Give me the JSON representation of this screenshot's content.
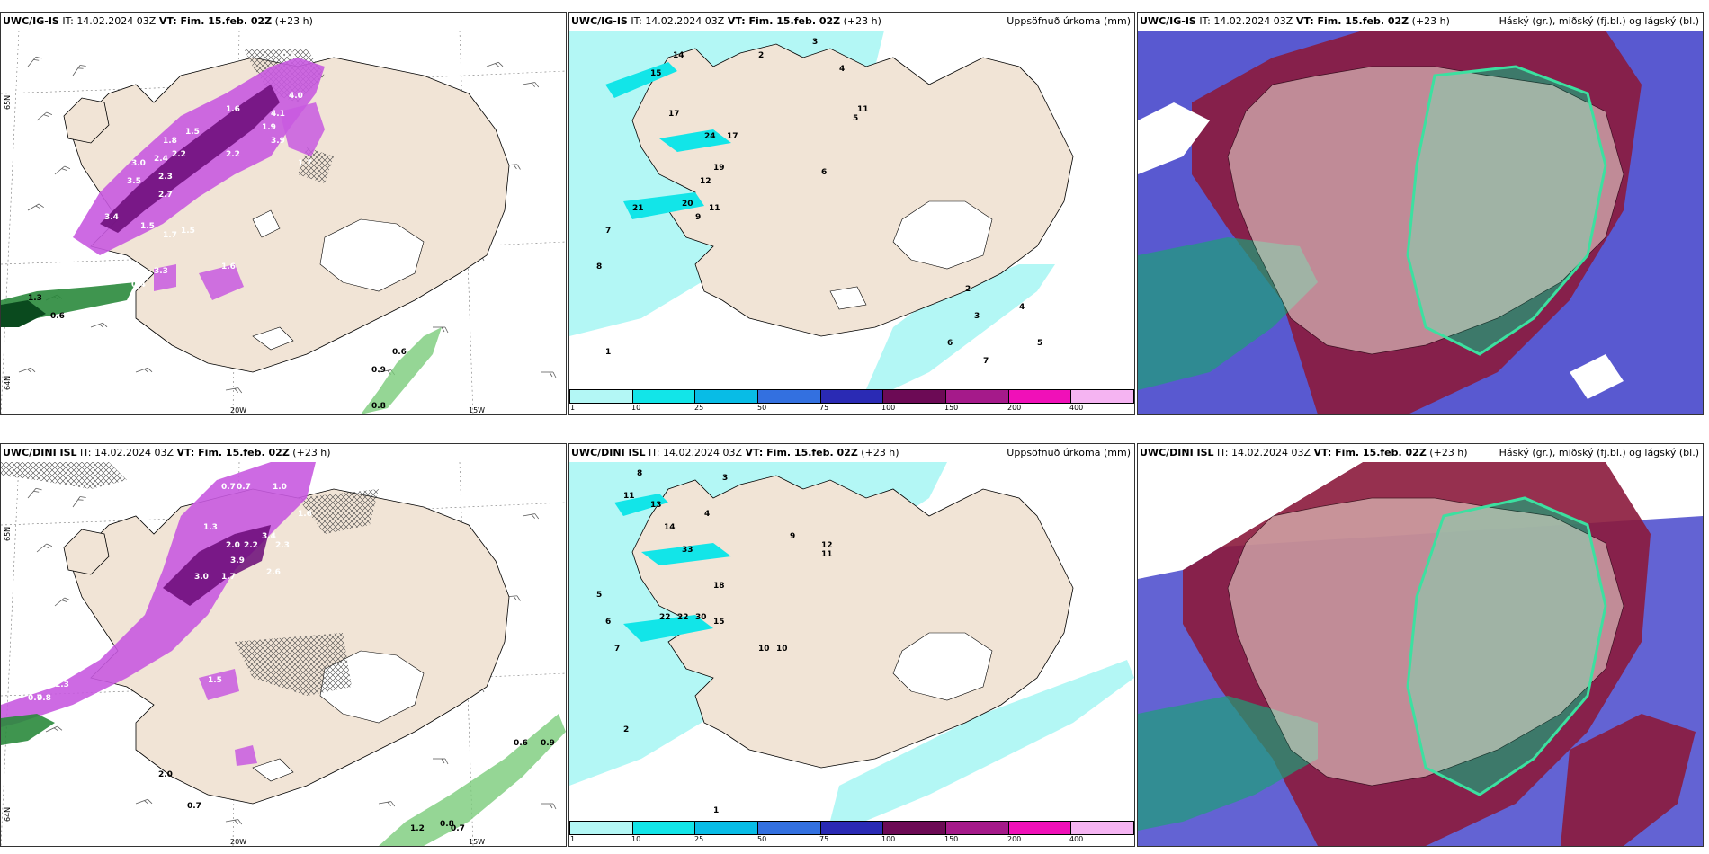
{
  "panels": {
    "p1": {
      "model": "UWC/IG-IS",
      "it_text": " IT: 14.02.2024 03Z ",
      "vt_label": "VT: Fim. 15.feb. 02Z",
      "lead": " (+23 h)",
      "right_label": "",
      "axis_labels": {
        "lat1": "65N",
        "lat2": "64N",
        "lon1": "20W",
        "lon2": "15W"
      },
      "values": [
        "0.3",
        "1.6",
        "1.5",
        "1.8",
        "3.0",
        "2.4",
        "2.2",
        "3.5",
        "2.7",
        "2.3",
        "3.4",
        "1.5",
        "1.7",
        "3.3",
        "0.4",
        "1.3",
        "1.6",
        "1.5",
        "0.6",
        "0.9",
        "0.6",
        "0.8",
        "4.0",
        "4.1",
        "1.9",
        "3.9",
        "1.7",
        "2.2"
      ]
    },
    "p2": {
      "model": "UWC/IG-IS",
      "it_text": " IT: 14.02.2024 03Z ",
      "vt_label": "VT: Fim. 15.feb. 02Z",
      "lead": " (+23 h)",
      "right_label": "Uppsöfnuð úrkoma (mm)",
      "colorbar_labels": [
        "1",
        "10",
        "25",
        "50",
        "75",
        "100",
        "150",
        "200",
        "400"
      ],
      "values": [
        "15",
        "14",
        "17",
        "24",
        "17",
        "19",
        "12",
        "21",
        "20",
        "11",
        "9",
        "2",
        "3",
        "4",
        "5",
        "6",
        "7",
        "8",
        "1",
        "11",
        "2",
        "3",
        "4",
        "5",
        "6",
        "7"
      ]
    },
    "p3": {
      "model": "UWC/IG-IS",
      "it_text": " IT: 14.02.2024 03Z ",
      "vt_label": "VT: Fim. 15.feb. 02Z",
      "lead": " (+23 h)",
      "right_label": "Háský (gr.), miðský (fj.bl.) og lágský (bl.)"
    },
    "p4": {
      "model": "UWC/DINI ISL",
      "it_text": " IT: 14.02.2024 03Z ",
      "vt_label": "VT: Fim. 15.feb. 02Z",
      "lead": " (+23 h)",
      "right_label": "",
      "axis_labels": {
        "lat1": "65N",
        "lat2": "64N",
        "lon1": "20W",
        "lon2": "15W"
      },
      "values": [
        "0.7",
        "0.7",
        "1.0",
        "1.3",
        "2.0",
        "3.4",
        "1.6",
        "2.2",
        "2.3",
        "3.0",
        "1.7",
        "3.9",
        "2.6",
        "0.7",
        "1.3",
        "0.8",
        "0.7",
        "1.2",
        "0.8",
        "0.7",
        "0.9",
        "1.5",
        "2.0",
        "0.6"
      ]
    },
    "p5": {
      "model": "UWC/DINI ISL",
      "it_text": " IT: 14.02.2024 03Z ",
      "vt_label": "VT: Fim. 15.feb. 02Z",
      "lead": " (+23 h)",
      "right_label": "Uppsöfnuð úrkoma (mm)",
      "colorbar_labels": [
        "1",
        "10",
        "25",
        "50",
        "75",
        "100",
        "150",
        "200",
        "400"
      ],
      "values": [
        "8",
        "11",
        "13",
        "14",
        "33",
        "18",
        "22",
        "22",
        "30",
        "10",
        "10",
        "12",
        "3",
        "4",
        "5",
        "6",
        "7",
        "2",
        "1",
        "9",
        "15",
        "11"
      ]
    },
    "p6": {
      "model": "UWC/DINI ISL",
      "it_text": " IT: 14.02.2024 03Z ",
      "vt_label": "VT: Fim. 15.feb. 02Z",
      "lead": " (+23 h)",
      "right_label": "Háský (gr.), miðský (fj.bl.) og lágský (bl.)"
    }
  },
  "colors": {
    "land": "#f1e4d6",
    "coast": "#000000",
    "precip_scale": [
      "#b3f7f5",
      "#12e5e8",
      "#08bce6",
      "#3370e0",
      "#2a2ab4",
      "#6c0a55",
      "#a51a8a",
      "#f010b8",
      "#f5b4f2"
    ],
    "wind_precip": [
      "#e8b4ee",
      "#c85ae0",
      "#9b20b4",
      "#6a0a78"
    ],
    "green_precip": [
      "#c8ecc0",
      "#7acc7a",
      "#2a8a3c",
      "#0a4a1e"
    ],
    "cloud_high": "#1ea078",
    "cloud_mid": "#8b1a3c",
    "cloud_low": "#3c3cc8"
  }
}
